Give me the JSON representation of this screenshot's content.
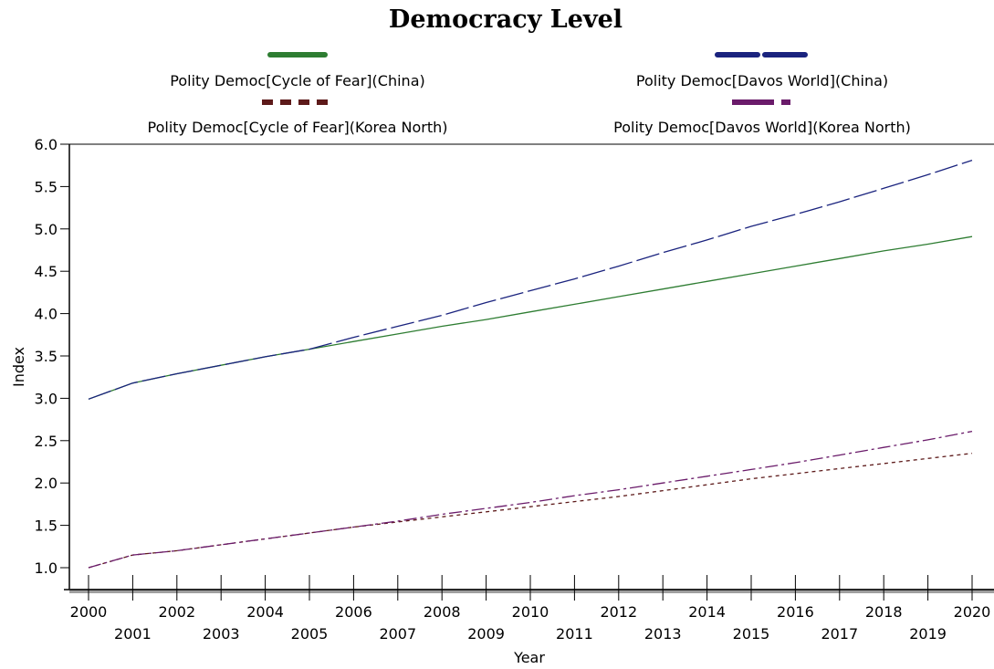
{
  "chart_data": {
    "type": "line",
    "title": "Democracy Level",
    "xlabel": "Year",
    "ylabel": "Index",
    "xlim": [
      2000,
      2020
    ],
    "ylim": [
      0.85,
      6.05
    ],
    "y_ticks": [
      "1.0",
      "1.5",
      "2.0",
      "2.5",
      "3.0",
      "3.5",
      "4.0",
      "4.5",
      "5.0",
      "5.5",
      "6.0"
    ],
    "x_ticks_upper": [
      "2000",
      "2002",
      "2004",
      "2006",
      "2008",
      "2010",
      "2012",
      "2014",
      "2016",
      "2018",
      "2020"
    ],
    "x_ticks_lower": [
      "2001",
      "2003",
      "2005",
      "2007",
      "2009",
      "2011",
      "2013",
      "2015",
      "2017",
      "2019"
    ],
    "grid": false,
    "legend_position": "top",
    "x": [
      2000,
      2001,
      2002,
      2003,
      2004,
      2005,
      2006,
      2007,
      2008,
      2009,
      2010,
      2011,
      2012,
      2013,
      2014,
      2015,
      2016,
      2017,
      2018,
      2019,
      2020
    ],
    "series": [
      {
        "name": "Polity Democ[Cycle of Fear](China)",
        "color": "#2e7d32",
        "dash": "solid",
        "values": [
          2.99,
          3.18,
          3.29,
          3.39,
          3.49,
          3.58,
          3.67,
          3.76,
          3.85,
          3.93,
          4.02,
          4.11,
          4.2,
          4.29,
          4.38,
          4.47,
          4.56,
          4.65,
          4.74,
          4.82,
          4.91
        ]
      },
      {
        "name": "Polity Democ[Davos World](China)",
        "color": "#1a237e",
        "dash": "long-dash",
        "values": [
          2.99,
          3.18,
          3.29,
          3.39,
          3.49,
          3.58,
          3.72,
          3.85,
          3.98,
          4.13,
          4.27,
          4.41,
          4.56,
          4.72,
          4.87,
          5.03,
          5.17,
          5.32,
          5.48,
          5.64,
          5.81
        ]
      },
      {
        "name": "Polity Democ[Cycle of Fear](Korea North)",
        "color": "#5d1a1a",
        "dash": "short-dash",
        "values": [
          1.0,
          1.15,
          1.2,
          1.27,
          1.34,
          1.41,
          1.48,
          1.54,
          1.6,
          1.66,
          1.72,
          1.78,
          1.84,
          1.91,
          1.98,
          2.05,
          2.11,
          2.17,
          2.23,
          2.29,
          2.35
        ]
      },
      {
        "name": "Polity Democ[Davos World](Korea North)",
        "color": "#6a1b6a",
        "dash": "dash-dot",
        "values": [
          1.0,
          1.15,
          1.2,
          1.27,
          1.34,
          1.41,
          1.48,
          1.55,
          1.63,
          1.7,
          1.77,
          1.85,
          1.92,
          2.0,
          2.08,
          2.16,
          2.24,
          2.33,
          2.42,
          2.51,
          2.61
        ]
      }
    ]
  }
}
